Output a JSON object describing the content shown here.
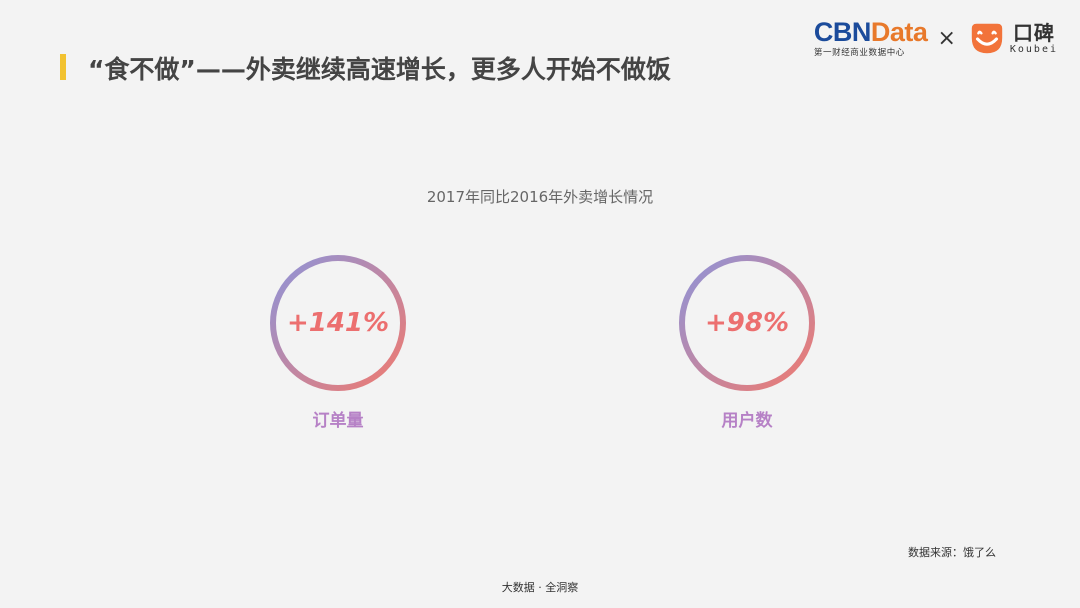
{
  "header": {
    "title": "“食不做”——外卖继续高速增长，更多人开始不做饭"
  },
  "brand": {
    "cbn_part1": "CBN",
    "cbn_part2": "Data",
    "cbn_sub": "第一财经商业数据中心",
    "times": "×",
    "koubei_cn": "口碑",
    "koubei_en": "Koubei"
  },
  "subtitle": "2017年同比2016年外卖增长情况",
  "stats": [
    {
      "value": "+141%",
      "label": "订单量"
    },
    {
      "value": "+98%",
      "label": "用户数"
    }
  ],
  "source": "数据来源：饿了么",
  "footer": "大数据 · 全洞察",
  "colors": {
    "accent_bar": "#f2c230",
    "ring_start": "#8e94d9",
    "ring_end": "#f07a6f",
    "value_text": "#ec6f6f",
    "label_text": "#b681c6",
    "cbn_blue": "#1b4b9b",
    "cbn_orange": "#e8792b",
    "koubei_orange": "#f2733a"
  }
}
